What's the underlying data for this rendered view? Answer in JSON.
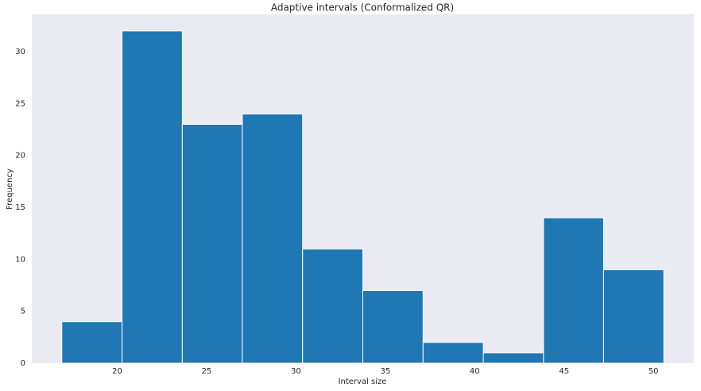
{
  "chart_data": {
    "type": "histogram",
    "title": "Adaptive intervals (Conformalized QR)",
    "x_label": "Interval size",
    "y_label": "Frequency",
    "bins": [
      16.9,
      20.27,
      23.64,
      27.0,
      30.37,
      33.74,
      37.11,
      40.48,
      43.85,
      47.21,
      50.58
    ],
    "values": [
      4,
      32,
      23,
      24,
      11,
      7,
      2,
      1,
      14,
      9
    ],
    "color": "#1f77b4",
    "edge_color": "#ffffff",
    "background": "#eaeaf2",
    "xlim": [
      15.22,
      52.26
    ],
    "xticks": [
      20,
      25,
      30,
      35,
      40,
      45,
      50
    ],
    "ylim": [
      0,
      33.6
    ],
    "yticks": [
      0,
      5,
      10,
      15,
      20,
      25,
      30
    ],
    "grid": false
  }
}
